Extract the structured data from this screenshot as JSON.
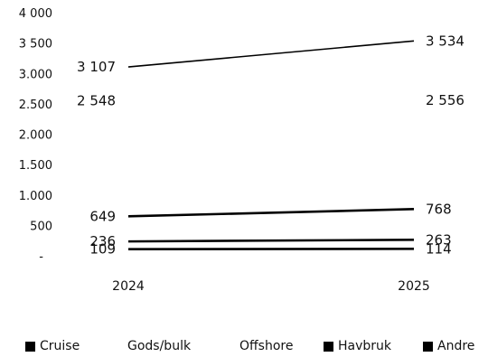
{
  "chart_data": {
    "type": "line",
    "x": [
      "2024",
      "2025"
    ],
    "ylim": [
      0,
      4000
    ],
    "y_ticks": [
      {
        "value": 0,
        "label": "-"
      },
      {
        "value": 500,
        "label": "500"
      },
      {
        "value": 1000,
        "label": "1.000"
      },
      {
        "value": 1500,
        "label": "1.500"
      },
      {
        "value": 2000,
        "label": "2.000"
      },
      {
        "value": 2500,
        "label": "2.500"
      },
      {
        "value": 3000,
        "label": "3.000"
      },
      {
        "value": 3500,
        "label": "3 500"
      },
      {
        "value": 4000,
        "label": "4 000"
      }
    ],
    "series": [
      {
        "name": "Cruise",
        "values": [
          649,
          768
        ],
        "labels": [
          "649",
          "768"
        ],
        "marker": true,
        "line": true
      },
      {
        "name": "Gods/bulk",
        "values": [
          3107,
          3534
        ],
        "labels": [
          "3 107",
          "3 534"
        ],
        "marker": false,
        "line": true
      },
      {
        "name": "Offshore",
        "values": [
          2548,
          2556
        ],
        "labels": [
          "2 548",
          "2 556"
        ],
        "marker": false,
        "line": false
      },
      {
        "name": "Havbruk",
        "values": [
          236,
          263
        ],
        "labels": [
          "236",
          "263"
        ],
        "marker": true,
        "line": true
      },
      {
        "name": "Andre",
        "values": [
          109,
          114
        ],
        "labels": [
          "109",
          "114"
        ],
        "marker": true,
        "line": true
      }
    ],
    "grid": false,
    "legend": "bottom",
    "colors": {
      "line": "#000000",
      "text": "#111111"
    }
  }
}
